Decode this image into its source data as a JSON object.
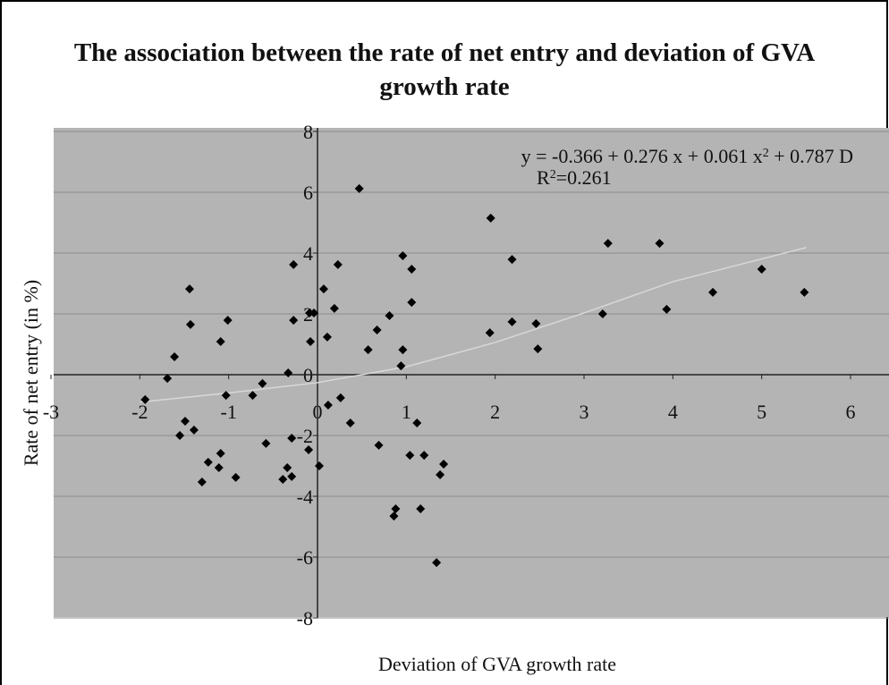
{
  "chart_data": {
    "type": "scatter",
    "title": "The association between the rate of net entry and deviation of GVA growth rate",
    "x_label": "Deviation of GVA growth rate",
    "y_label": "Rate of net entry (in %)",
    "equation": [
      "y = -0.366 + 0.276 x + 0.061 x",
      "2",
      " + 0.787 D"
    ],
    "r_squared": [
      "R",
      "2",
      "=0.261"
    ],
    "xlim": [
      -3,
      6
    ],
    "ylim": [
      -8,
      8
    ],
    "xticks": [
      -3,
      -2,
      -1,
      0,
      1,
      2,
      3,
      4,
      5,
      6
    ],
    "yticks": [
      -8,
      -6,
      -4,
      -2,
      0,
      2,
      4,
      6,
      8
    ],
    "grid": true,
    "color": "#000000",
    "background": "#b4b4b4",
    "x": [
      -1.94,
      -1.69,
      -1.61,
      -1.44,
      -1.43,
      -1.49,
      -1.55,
      -1.39,
      -1.23,
      -1.3,
      -1.09,
      -1.01,
      -1.03,
      -1.09,
      -1.11,
      -0.92,
      -0.73,
      -0.62,
      -0.58,
      -0.39,
      -0.34,
      -0.29,
      -0.29,
      -0.33,
      -0.27,
      -0.27,
      -0.09,
      -0.08,
      -0.1,
      0.02,
      -0.04,
      0.07,
      0.11,
      0.12,
      0.19,
      0.23,
      0.26,
      0.37,
      0.47,
      0.57,
      0.67,
      0.69,
      0.81,
      0.86,
      0.88,
      0.94,
      0.96,
      0.96,
      1.04,
      1.06,
      1.06,
      1.12,
      1.16,
      1.2,
      1.34,
      1.38,
      1.42,
      1.94,
      1.95,
      2.19,
      2.19,
      2.46,
      2.48,
      3.21,
      3.27,
      3.85,
      3.93,
      4.45,
      5.0,
      5.48
    ],
    "values": [
      -0.82,
      -0.12,
      0.59,
      2.82,
      1.65,
      -1.53,
      -2.0,
      -1.82,
      -2.88,
      -3.53,
      1.09,
      1.79,
      -0.68,
      -2.59,
      -3.06,
      -3.38,
      -0.68,
      -0.29,
      -2.26,
      -3.44,
      -3.06,
      -3.35,
      -2.09,
      0.06,
      3.62,
      1.79,
      2.03,
      1.09,
      -2.47,
      -3.0,
      2.03,
      2.82,
      1.24,
      -1.0,
      2.18,
      3.62,
      -0.76,
      -1.59,
      6.12,
      0.82,
      1.47,
      -2.32,
      1.94,
      -4.65,
      -4.41,
      0.29,
      0.82,
      3.91,
      -2.65,
      3.47,
      2.38,
      -1.59,
      -4.41,
      -2.65,
      -6.18,
      -3.29,
      -2.94,
      1.38,
      5.15,
      3.79,
      1.74,
      1.68,
      0.85,
      2.0,
      4.32,
      4.32,
      2.15,
      2.71,
      3.47,
      2.71
    ],
    "trend_line": {
      "color": "#d8d8d8",
      "x": [
        -2,
        -1,
        0,
        1,
        2,
        3,
        4,
        5.5
      ],
      "y": [
        -0.9,
        -0.6,
        -0.26,
        0.26,
        1.06,
        2.03,
        3.06,
        4.18
      ]
    }
  }
}
